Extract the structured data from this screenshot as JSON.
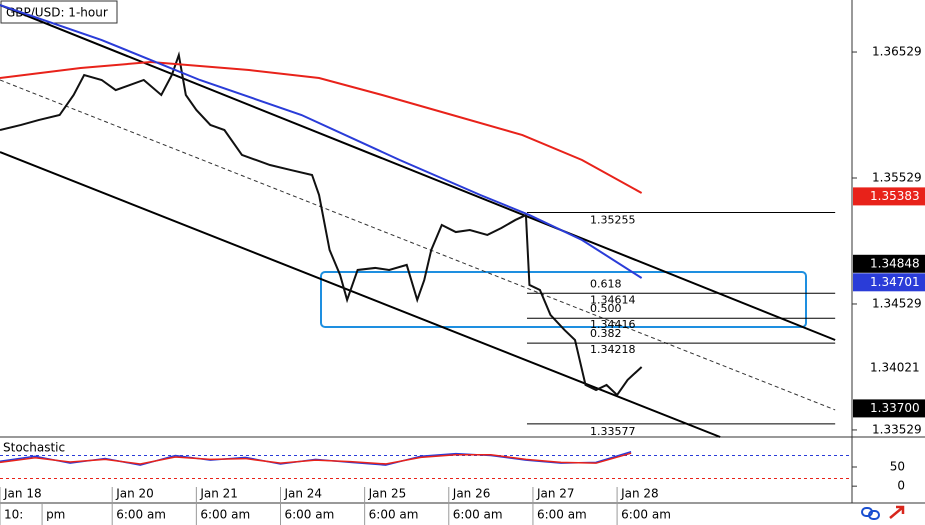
{
  "chart_data": {
    "type": "line",
    "title": "GBP/USD: 1-hour",
    "xlim": [
      0,
      243
    ],
    "xticks": [
      {
        "value": 0,
        "label": "Jan 18"
      },
      {
        "value": 32,
        "label": "Jan 20"
      },
      {
        "value": 56,
        "label": "Jan 21"
      },
      {
        "value": 80,
        "label": "Jan 24"
      },
      {
        "value": 104,
        "label": "Jan 25"
      },
      {
        "value": 128,
        "label": "Jan 26"
      },
      {
        "value": 152,
        "label": "Jan 27"
      },
      {
        "value": 176,
        "label": "Jan 28"
      }
    ],
    "time_labels": [
      {
        "value": 0,
        "label": "10:"
      },
      {
        "value": 12,
        "label": "pm"
      },
      {
        "value": 32,
        "label": "6:00 am"
      },
      {
        "value": 56,
        "label": "6:00 am"
      },
      {
        "value": 80,
        "label": "6:00 am"
      },
      {
        "value": 104,
        "label": "6:00 am"
      },
      {
        "value": 128,
        "label": "6:00 am"
      },
      {
        "value": 152,
        "label": "6:00 am"
      },
      {
        "value": 176,
        "label": "6:00 am"
      }
    ],
    "ylim": [
      1.33473,
      1.36942
    ],
    "yticks": [
      1.36529,
      1.35529,
      1.34529,
      1.33529
    ],
    "series": [
      {
        "color": "#111111",
        "x": [
          0,
          6,
          11,
          17,
          21,
          24,
          29,
          33,
          37,
          41,
          46,
          49,
          51,
          53,
          56,
          60,
          64,
          69,
          73,
          77,
          83,
          89,
          91,
          94,
          97,
          99,
          102,
          107,
          111,
          116,
          119,
          121,
          123,
          126,
          130,
          134,
          139,
          143,
          147,
          150,
          151,
          154,
          157,
          161,
          164,
          167,
          170,
          173,
          176,
          179,
          183
        ],
        "values": [
          1.3591,
          1.3595,
          1.35989,
          1.36029,
          1.36188,
          1.36346,
          1.36307,
          1.36227,
          1.36267,
          1.36307,
          1.36188,
          1.36346,
          1.36505,
          1.36188,
          1.36069,
          1.3595,
          1.3591,
          1.35712,
          1.35672,
          1.35632,
          1.35592,
          1.35553,
          1.35394,
          1.34958,
          1.34759,
          1.34561,
          1.34799,
          1.34815,
          1.34799,
          1.34839,
          1.34561,
          1.34719,
          1.34958,
          1.35156,
          1.351,
          1.35116,
          1.35077,
          1.35132,
          1.35196,
          1.35235,
          1.3468,
          1.3464,
          1.34442,
          1.34323,
          1.34243,
          1.33886,
          1.33846,
          1.33886,
          1.33807,
          1.33926,
          1.34029
        ]
      },
      {
        "color": "#e8221a",
        "x": [
          0,
          23,
          43,
          71,
          91,
          109,
          129,
          149,
          166,
          183
        ],
        "values": [
          1.36323,
          1.36402,
          1.3645,
          1.36386,
          1.36323,
          1.36188,
          1.36029,
          1.3587,
          1.35672,
          1.3541
        ]
      },
      {
        "color": "#2a3cd8",
        "x": [
          0,
          29,
          57,
          86,
          114,
          137,
          151,
          166,
          183
        ],
        "values": [
          1.36902,
          1.36624,
          1.36307,
          1.36029,
          1.35672,
          1.35394,
          1.35235,
          1.35037,
          1.34735
        ]
      }
    ],
    "lines": [
      {
        "color": "#000000",
        "dash": false,
        "x": [
          0,
          238.2
        ],
        "values": [
          1.36902,
          1.34243
        ]
      },
      {
        "color": "#000000",
        "dash": false,
        "x": [
          0,
          205.4
        ],
        "values": [
          1.35735,
          1.33473
        ]
      },
      {
        "color": "#333333",
        "dash": true,
        "x": [
          0,
          238.2
        ],
        "values": [
          1.36307,
          1.33688
        ]
      }
    ],
    "fib_x": [
      150.3,
      238.2
    ],
    "fib_levels": [
      {
        "value": 1.35255
      },
      {
        "value": 1.34614,
        "ratio": "0.618"
      },
      {
        "value": 1.34416,
        "ratio": "0.500"
      },
      {
        "value": 1.34218,
        "ratio": "0.382"
      },
      {
        "value": 1.33577
      }
    ],
    "price_tags": [
      {
        "value": 1.35383,
        "color": "#e8221a",
        "text_color": "#ffffff"
      },
      {
        "value": 1.34848,
        "color": "#000000",
        "text_color": "#ffffff"
      },
      {
        "value": 1.34701,
        "color": "#2a3cd8",
        "text_color": "#ffffff"
      },
      {
        "value": 1.34021,
        "color": "#ffffff",
        "text_color": "#000000"
      },
      {
        "value": 1.337,
        "label": "1.33700",
        "color": "#000000",
        "text_color": "#ffffff"
      }
    ],
    "stochastic": {
      "title": "Stochastic",
      "ylim": [
        -10,
        110
      ],
      "yticks": [
        50,
        0
      ],
      "levels": [
        {
          "value": 80,
          "color": "#2a3cd8"
        },
        {
          "value": 20,
          "color": "#e8221a"
        }
      ],
      "series": [
        {
          "color": "#2a3cd8",
          "x": [
            0,
            10,
            20,
            30,
            40,
            50,
            60,
            70,
            80,
            90,
            100,
            110,
            120,
            130,
            140,
            150,
            160,
            170,
            180
          ],
          "values": [
            65,
            78,
            60,
            72,
            55,
            80,
            68,
            75,
            58,
            70,
            62,
            55,
            78,
            85,
            80,
            68,
            60,
            62,
            90
          ]
        },
        {
          "color": "#e8221a",
          "x": [
            0,
            10,
            20,
            30,
            40,
            50,
            60,
            70,
            80,
            90,
            100,
            110,
            120,
            130,
            140,
            150,
            160,
            170,
            180
          ],
          "values": [
            62,
            74,
            63,
            70,
            58,
            76,
            70,
            72,
            60,
            68,
            64,
            58,
            75,
            82,
            82,
            70,
            62,
            60,
            86
          ]
        }
      ]
    }
  }
}
